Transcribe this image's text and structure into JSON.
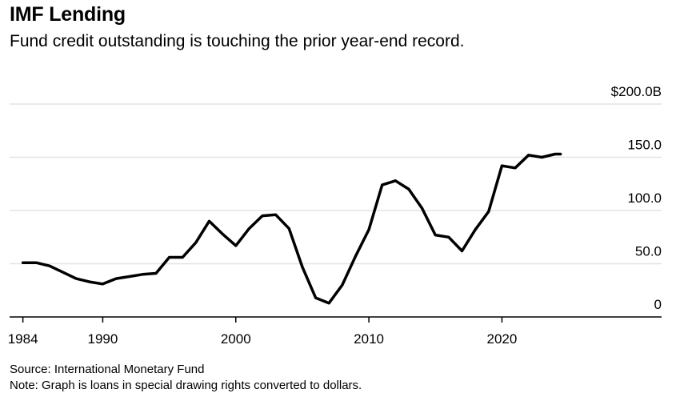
{
  "header": {
    "title": "IMF Lending",
    "subtitle": "Fund credit outstanding is touching the prior year-end record."
  },
  "footer": {
    "source": "Source: International Monetary Fund",
    "note": "Note: Graph is loans in special drawing rights converted to dollars."
  },
  "chart_data": {
    "type": "line",
    "title": "IMF Lending",
    "subtitle": "Fund credit outstanding is touching the prior year-end record.",
    "xlabel": "",
    "ylabel": "",
    "xlim": [
      1983,
      2032
    ],
    "ylim": [
      0,
      200
    ],
    "grid": true,
    "line_color": "#000000",
    "grid_color": "#e3e3e3",
    "axis_color": "#000000",
    "x_ticks": [
      {
        "value": 1984,
        "label": "1984"
      },
      {
        "value": 1990,
        "label": "1990"
      },
      {
        "value": 2000,
        "label": "2000"
      },
      {
        "value": 2010,
        "label": "2010"
      },
      {
        "value": 2020,
        "label": "2020"
      }
    ],
    "y_ticks": [
      {
        "value": 0,
        "label": "0"
      },
      {
        "value": 50,
        "label": "50.0"
      },
      {
        "value": 100,
        "label": "100.0"
      },
      {
        "value": 150,
        "label": "150.0"
      },
      {
        "value": 200,
        "label": "$200.0B"
      }
    ],
    "series": [
      {
        "name": "Fund credit outstanding",
        "x": [
          1984,
          1985,
          1986,
          1987,
          1988,
          1989,
          1990,
          1991,
          1992,
          1993,
          1994,
          1995,
          1996,
          1997,
          1998,
          1999,
          2000,
          2001,
          2002,
          2003,
          2004,
          2005,
          2006,
          2007,
          2008,
          2009,
          2010,
          2011,
          2012,
          2013,
          2014,
          2015,
          2016,
          2017,
          2018,
          2019,
          2020,
          2021,
          2022,
          2023,
          2024,
          2024.4
        ],
        "values": [
          51,
          51,
          48,
          42,
          36,
          33,
          31,
          36,
          38,
          40,
          41,
          56,
          56,
          70,
          90,
          78,
          67,
          83,
          95,
          96,
          83,
          47,
          18,
          13,
          30,
          57,
          82,
          124,
          128,
          120,
          102,
          77,
          75,
          62,
          82,
          99,
          142,
          140,
          152,
          150,
          153,
          153
        ]
      }
    ]
  }
}
